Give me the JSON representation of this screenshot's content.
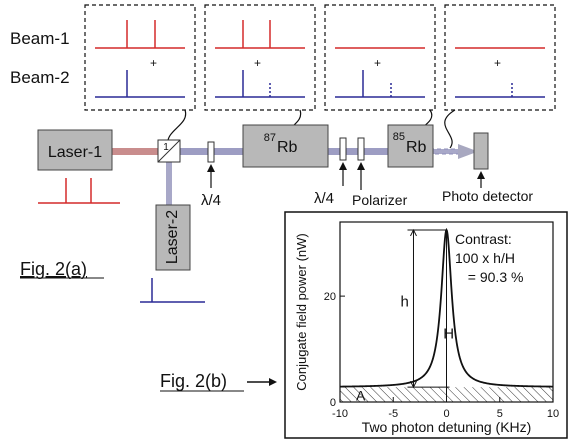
{
  "diagram": {
    "beam_labels": {
      "beam1": "Beam-1",
      "beam2": "Beam-2"
    },
    "plus_sign": "+",
    "components": {
      "laser1": "Laser-1",
      "laser2": "Laser-2",
      "beamsplitter_number": "1",
      "rb87_mass": "87",
      "rb87_symbol": "Rb",
      "rb85_mass": "85",
      "rb85_symbol": "Rb",
      "quarter_wave_1": "λ/4",
      "quarter_wave_2": "λ/4",
      "polarizer": "Polarizer",
      "photo_detector": "Photo detector"
    },
    "fig_2a": "Fig. 2(a)",
    "fig_2b": "Fig. 2(b)",
    "colors": {
      "beam1": "#d42a2a",
      "beam2": "#2a2a96",
      "box_fill": "#b8b8b8",
      "laser1_beam": "#c98d8d",
      "beam_path": "#8c8cb8"
    }
  },
  "chart_data": {
    "type": "line",
    "xlabel": "Two photon detuning (KHz)",
    "ylabel": "Conjugate field power (nW)",
    "xlim": [
      -10,
      10
    ],
    "ylim": [
      0,
      34
    ],
    "xticks": [
      -10,
      -5,
      0,
      5,
      10
    ],
    "yticks": [
      0,
      20
    ],
    "baseline": 2.8,
    "peak_x": 0,
    "peak_y": 32.5,
    "lorentz_width_khz": 0.6,
    "annotations": {
      "contrast_title": "Contrast:",
      "contrast_formula": "100 x h/H",
      "contrast_value": "= 90.3 %",
      "h_label": "h",
      "H_label": "H",
      "A_label": "A"
    }
  }
}
